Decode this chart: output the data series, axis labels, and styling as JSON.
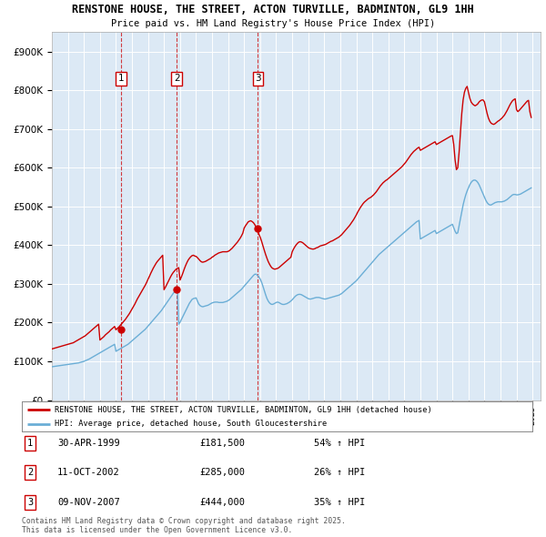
{
  "title_line1": "RENSTONE HOUSE, THE STREET, ACTON TURVILLE, BADMINTON, GL9 1HH",
  "title_line2": "Price paid vs. HM Land Registry's House Price Index (HPI)",
  "bg_color": "#dce9f5",
  "grid_color": "#ffffff",
  "hpi_color": "#6baed6",
  "price_color": "#cc0000",
  "yticks": [
    0,
    100000,
    200000,
    300000,
    400000,
    500000,
    600000,
    700000,
    800000,
    900000
  ],
  "ytick_labels": [
    "£0",
    "£100K",
    "£200K",
    "£300K",
    "£400K",
    "£500K",
    "£600K",
    "£700K",
    "£800K",
    "£900K"
  ],
  "xmin": 1995.0,
  "xmax": 2025.5,
  "ymin": 0,
  "ymax": 950000,
  "purchases": [
    {
      "num": 1,
      "date": "30-APR-1999",
      "price": 181500,
      "pct": "54%",
      "year": 1999.33
    },
    {
      "num": 2,
      "date": "11-OCT-2002",
      "price": 285000,
      "pct": "26%",
      "year": 2002.79
    },
    {
      "num": 3,
      "date": "09-NOV-2007",
      "price": 444000,
      "pct": "35%",
      "year": 2007.86
    }
  ],
  "legend_line1": "RENSTONE HOUSE, THE STREET, ACTON TURVILLE, BADMINTON, GL9 1HH (detached house)",
  "legend_line2": "HPI: Average price, detached house, South Gloucestershire",
  "footer": "Contains HM Land Registry data © Crown copyright and database right 2025.\nThis data is licensed under the Open Government Licence v3.0.",
  "hpi_data_x": [
    1995.0,
    1995.083,
    1995.167,
    1995.25,
    1995.333,
    1995.417,
    1995.5,
    1995.583,
    1995.667,
    1995.75,
    1995.833,
    1995.917,
    1996.0,
    1996.083,
    1996.167,
    1996.25,
    1996.333,
    1996.417,
    1996.5,
    1996.583,
    1996.667,
    1996.75,
    1996.833,
    1996.917,
    1997.0,
    1997.083,
    1997.167,
    1997.25,
    1997.333,
    1997.417,
    1997.5,
    1997.583,
    1997.667,
    1997.75,
    1997.833,
    1997.917,
    1998.0,
    1998.083,
    1998.167,
    1998.25,
    1998.333,
    1998.417,
    1998.5,
    1998.583,
    1998.667,
    1998.75,
    1998.833,
    1998.917,
    1999.0,
    1999.083,
    1999.167,
    1999.25,
    1999.333,
    1999.417,
    1999.5,
    1999.583,
    1999.667,
    1999.75,
    1999.833,
    1999.917,
    2000.0,
    2000.083,
    2000.167,
    2000.25,
    2000.333,
    2000.417,
    2000.5,
    2000.583,
    2000.667,
    2000.75,
    2000.833,
    2000.917,
    2001.0,
    2001.083,
    2001.167,
    2001.25,
    2001.333,
    2001.417,
    2001.5,
    2001.583,
    2001.667,
    2001.75,
    2001.833,
    2001.917,
    2002.0,
    2002.083,
    2002.167,
    2002.25,
    2002.333,
    2002.417,
    2002.5,
    2002.583,
    2002.667,
    2002.75,
    2002.833,
    2002.917,
    2003.0,
    2003.083,
    2003.167,
    2003.25,
    2003.333,
    2003.417,
    2003.5,
    2003.583,
    2003.667,
    2003.75,
    2003.833,
    2003.917,
    2004.0,
    2004.083,
    2004.167,
    2004.25,
    2004.333,
    2004.417,
    2004.5,
    2004.583,
    2004.667,
    2004.75,
    2004.833,
    2004.917,
    2005.0,
    2005.083,
    2005.167,
    2005.25,
    2005.333,
    2005.417,
    2005.5,
    2005.583,
    2005.667,
    2005.75,
    2005.833,
    2005.917,
    2006.0,
    2006.083,
    2006.167,
    2006.25,
    2006.333,
    2006.417,
    2006.5,
    2006.583,
    2006.667,
    2006.75,
    2006.833,
    2006.917,
    2007.0,
    2007.083,
    2007.167,
    2007.25,
    2007.333,
    2007.417,
    2007.5,
    2007.583,
    2007.667,
    2007.75,
    2007.833,
    2007.917,
    2008.0,
    2008.083,
    2008.167,
    2008.25,
    2008.333,
    2008.417,
    2008.5,
    2008.583,
    2008.667,
    2008.75,
    2008.833,
    2008.917,
    2009.0,
    2009.083,
    2009.167,
    2009.25,
    2009.333,
    2009.417,
    2009.5,
    2009.583,
    2009.667,
    2009.75,
    2009.833,
    2009.917,
    2010.0,
    2010.083,
    2010.167,
    2010.25,
    2010.333,
    2010.417,
    2010.5,
    2010.583,
    2010.667,
    2010.75,
    2010.833,
    2010.917,
    2011.0,
    2011.083,
    2011.167,
    2011.25,
    2011.333,
    2011.417,
    2011.5,
    2011.583,
    2011.667,
    2011.75,
    2011.833,
    2011.917,
    2012.0,
    2012.083,
    2012.167,
    2012.25,
    2012.333,
    2012.417,
    2012.5,
    2012.583,
    2012.667,
    2012.75,
    2012.833,
    2012.917,
    2013.0,
    2013.083,
    2013.167,
    2013.25,
    2013.333,
    2013.417,
    2013.5,
    2013.583,
    2013.667,
    2013.75,
    2013.833,
    2013.917,
    2014.0,
    2014.083,
    2014.167,
    2014.25,
    2014.333,
    2014.417,
    2014.5,
    2014.583,
    2014.667,
    2014.75,
    2014.833,
    2014.917,
    2015.0,
    2015.083,
    2015.167,
    2015.25,
    2015.333,
    2015.417,
    2015.5,
    2015.583,
    2015.667,
    2015.75,
    2015.833,
    2015.917,
    2016.0,
    2016.083,
    2016.167,
    2016.25,
    2016.333,
    2016.417,
    2016.5,
    2016.583,
    2016.667,
    2016.75,
    2016.833,
    2016.917,
    2017.0,
    2017.083,
    2017.167,
    2017.25,
    2017.333,
    2017.417,
    2017.5,
    2017.583,
    2017.667,
    2017.75,
    2017.833,
    2017.917,
    2018.0,
    2018.083,
    2018.167,
    2018.25,
    2018.333,
    2018.417,
    2018.5,
    2018.583,
    2018.667,
    2018.75,
    2018.833,
    2018.917,
    2019.0,
    2019.083,
    2019.167,
    2019.25,
    2019.333,
    2019.417,
    2019.5,
    2019.583,
    2019.667,
    2019.75,
    2019.833,
    2019.917,
    2020.0,
    2020.083,
    2020.167,
    2020.25,
    2020.333,
    2020.417,
    2020.5,
    2020.583,
    2020.667,
    2020.75,
    2020.833,
    2020.917,
    2021.0,
    2021.083,
    2021.167,
    2021.25,
    2021.333,
    2021.417,
    2021.5,
    2021.583,
    2021.667,
    2021.75,
    2021.833,
    2021.917,
    2022.0,
    2022.083,
    2022.167,
    2022.25,
    2022.333,
    2022.417,
    2022.5,
    2022.583,
    2022.667,
    2022.75,
    2022.833,
    2022.917,
    2023.0,
    2023.083,
    2023.167,
    2023.25,
    2023.333,
    2023.417,
    2023.5,
    2023.583,
    2023.667,
    2023.75,
    2023.833,
    2023.917,
    2024.0,
    2024.083,
    2024.167,
    2024.25,
    2024.333,
    2024.417,
    2024.5,
    2024.583,
    2024.667,
    2024.75,
    2024.833,
    2024.917
  ],
  "hpi_data_y": [
    86000,
    86500,
    87000,
    87500,
    88000,
    88500,
    89000,
    89500,
    90000,
    90500,
    91000,
    91500,
    92000,
    92500,
    93000,
    93500,
    94000,
    94500,
    95000,
    95500,
    96000,
    97000,
    98000,
    99000,
    100000,
    101500,
    103000,
    104500,
    106000,
    108000,
    110000,
    112000,
    114000,
    116000,
    118000,
    120000,
    122000,
    124000,
    126000,
    128000,
    130000,
    132000,
    134000,
    136000,
    138000,
    140000,
    142000,
    144000,
    126000,
    128000,
    130000,
    132000,
    134000,
    136000,
    138000,
    140000,
    142000,
    144000,
    147000,
    150000,
    153000,
    156000,
    159000,
    162000,
    165000,
    168000,
    171000,
    174000,
    177000,
    180000,
    183000,
    187000,
    191000,
    195000,
    199000,
    203000,
    207000,
    211000,
    215000,
    219000,
    223000,
    227000,
    231000,
    236000,
    241000,
    246000,
    251000,
    256000,
    261000,
    266000,
    271000,
    276000,
    281000,
    286000,
    291000,
    196000,
    201000,
    208000,
    215000,
    222000,
    229000,
    236000,
    243000,
    250000,
    255000,
    260000,
    262000,
    263000,
    264000,
    256000,
    248000,
    244000,
    242000,
    241000,
    242000,
    243000,
    244000,
    245000,
    247000,
    249000,
    251000,
    252000,
    253000,
    253000,
    253000,
    252000,
    252000,
    252000,
    252000,
    253000,
    254000,
    255000,
    257000,
    259000,
    262000,
    265000,
    268000,
    271000,
    274000,
    277000,
    280000,
    283000,
    286000,
    290000,
    294000,
    298000,
    302000,
    306000,
    310000,
    314000,
    318000,
    322000,
    325000,
    325000,
    322000,
    318000,
    313000,
    305000,
    295000,
    284000,
    273000,
    263000,
    256000,
    251000,
    248000,
    247000,
    248000,
    250000,
    252000,
    253000,
    252000,
    250000,
    248000,
    247000,
    247000,
    248000,
    249000,
    251000,
    253000,
    256000,
    259000,
    263000,
    267000,
    270000,
    272000,
    273000,
    273000,
    272000,
    270000,
    268000,
    266000,
    264000,
    262000,
    261000,
    261000,
    262000,
    263000,
    264000,
    265000,
    265000,
    265000,
    264000,
    263000,
    262000,
    261000,
    261000,
    262000,
    263000,
    264000,
    265000,
    266000,
    267000,
    268000,
    269000,
    270000,
    271000,
    273000,
    275000,
    278000,
    281000,
    284000,
    287000,
    290000,
    293000,
    296000,
    299000,
    302000,
    305000,
    308000,
    312000,
    316000,
    320000,
    324000,
    328000,
    332000,
    336000,
    340000,
    344000,
    348000,
    352000,
    356000,
    360000,
    364000,
    368000,
    372000,
    376000,
    379000,
    382000,
    385000,
    388000,
    391000,
    394000,
    397000,
    400000,
    403000,
    406000,
    409000,
    412000,
    415000,
    418000,
    421000,
    424000,
    427000,
    430000,
    433000,
    436000,
    439000,
    442000,
    445000,
    448000,
    451000,
    454000,
    457000,
    460000,
    462000,
    464000,
    416000,
    418000,
    420000,
    422000,
    424000,
    426000,
    428000,
    430000,
    432000,
    434000,
    436000,
    438000,
    430000,
    432000,
    434000,
    436000,
    438000,
    440000,
    442000,
    444000,
    446000,
    448000,
    450000,
    452000,
    454000,
    445000,
    436000,
    430000,
    432000,
    450000,
    468000,
    486000,
    504000,
    518000,
    530000,
    540000,
    548000,
    556000,
    562000,
    566000,
    568000,
    568000,
    566000,
    562000,
    556000,
    548000,
    540000,
    532000,
    524000,
    516000,
    510000,
    506000,
    504000,
    504000,
    506000,
    508000,
    510000,
    511000,
    512000,
    512000,
    512000,
    512000,
    513000,
    514000,
    516000,
    518000,
    521000,
    524000,
    527000,
    530000,
    531000,
    531000,
    530000,
    530000,
    531000,
    532000,
    534000,
    536000,
    538000,
    540000,
    542000,
    544000,
    546000,
    548000
  ],
  "price_data_x": [
    1995.0,
    1995.083,
    1995.167,
    1995.25,
    1995.333,
    1995.417,
    1995.5,
    1995.583,
    1995.667,
    1995.75,
    1995.833,
    1995.917,
    1996.0,
    1996.083,
    1996.167,
    1996.25,
    1996.333,
    1996.417,
    1996.5,
    1996.583,
    1996.667,
    1996.75,
    1996.833,
    1996.917,
    1997.0,
    1997.083,
    1997.167,
    1997.25,
    1997.333,
    1997.417,
    1997.5,
    1997.583,
    1997.667,
    1997.75,
    1997.833,
    1997.917,
    1998.0,
    1998.083,
    1998.167,
    1998.25,
    1998.333,
    1998.417,
    1998.5,
    1998.583,
    1998.667,
    1998.75,
    1998.833,
    1998.917,
    1999.0,
    1999.083,
    1999.167,
    1999.25,
    1999.333,
    1999.417,
    1999.5,
    1999.583,
    1999.667,
    1999.75,
    1999.833,
    1999.917,
    2000.0,
    2000.083,
    2000.167,
    2000.25,
    2000.333,
    2000.417,
    2000.5,
    2000.583,
    2000.667,
    2000.75,
    2000.833,
    2000.917,
    2001.0,
    2001.083,
    2001.167,
    2001.25,
    2001.333,
    2001.417,
    2001.5,
    2001.583,
    2001.667,
    2001.75,
    2001.833,
    2001.917,
    2002.0,
    2002.083,
    2002.167,
    2002.25,
    2002.333,
    2002.417,
    2002.5,
    2002.583,
    2002.667,
    2002.75,
    2002.833,
    2002.917,
    2003.0,
    2003.083,
    2003.167,
    2003.25,
    2003.333,
    2003.417,
    2003.5,
    2003.583,
    2003.667,
    2003.75,
    2003.833,
    2003.917,
    2004.0,
    2004.083,
    2004.167,
    2004.25,
    2004.333,
    2004.417,
    2004.5,
    2004.583,
    2004.667,
    2004.75,
    2004.833,
    2004.917,
    2005.0,
    2005.083,
    2005.167,
    2005.25,
    2005.333,
    2005.417,
    2005.5,
    2005.583,
    2005.667,
    2005.75,
    2005.833,
    2005.917,
    2006.0,
    2006.083,
    2006.167,
    2006.25,
    2006.333,
    2006.417,
    2006.5,
    2006.583,
    2006.667,
    2006.75,
    2006.833,
    2006.917,
    2007.0,
    2007.083,
    2007.167,
    2007.25,
    2007.333,
    2007.417,
    2007.5,
    2007.583,
    2007.667,
    2007.75,
    2007.833,
    2007.917,
    2008.0,
    2008.083,
    2008.167,
    2008.25,
    2008.333,
    2008.417,
    2008.5,
    2008.583,
    2008.667,
    2008.75,
    2008.833,
    2008.917,
    2009.0,
    2009.083,
    2009.167,
    2009.25,
    2009.333,
    2009.417,
    2009.5,
    2009.583,
    2009.667,
    2009.75,
    2009.833,
    2009.917,
    2010.0,
    2010.083,
    2010.167,
    2010.25,
    2010.333,
    2010.417,
    2010.5,
    2010.583,
    2010.667,
    2010.75,
    2010.833,
    2010.917,
    2011.0,
    2011.083,
    2011.167,
    2011.25,
    2011.333,
    2011.417,
    2011.5,
    2011.583,
    2011.667,
    2011.75,
    2011.833,
    2011.917,
    2012.0,
    2012.083,
    2012.167,
    2012.25,
    2012.333,
    2012.417,
    2012.5,
    2012.583,
    2012.667,
    2012.75,
    2012.833,
    2012.917,
    2013.0,
    2013.083,
    2013.167,
    2013.25,
    2013.333,
    2013.417,
    2013.5,
    2013.583,
    2013.667,
    2013.75,
    2013.833,
    2013.917,
    2014.0,
    2014.083,
    2014.167,
    2014.25,
    2014.333,
    2014.417,
    2014.5,
    2014.583,
    2014.667,
    2014.75,
    2014.833,
    2014.917,
    2015.0,
    2015.083,
    2015.167,
    2015.25,
    2015.333,
    2015.417,
    2015.5,
    2015.583,
    2015.667,
    2015.75,
    2015.833,
    2015.917,
    2016.0,
    2016.083,
    2016.167,
    2016.25,
    2016.333,
    2016.417,
    2016.5,
    2016.583,
    2016.667,
    2016.75,
    2016.833,
    2016.917,
    2017.0,
    2017.083,
    2017.167,
    2017.25,
    2017.333,
    2017.417,
    2017.5,
    2017.583,
    2017.667,
    2017.75,
    2017.833,
    2017.917,
    2018.0,
    2018.083,
    2018.167,
    2018.25,
    2018.333,
    2018.417,
    2018.5,
    2018.583,
    2018.667,
    2018.75,
    2018.833,
    2018.917,
    2019.0,
    2019.083,
    2019.167,
    2019.25,
    2019.333,
    2019.417,
    2019.5,
    2019.583,
    2019.667,
    2019.75,
    2019.833,
    2019.917,
    2020.0,
    2020.083,
    2020.167,
    2020.25,
    2020.333,
    2020.417,
    2020.5,
    2020.583,
    2020.667,
    2020.75,
    2020.833,
    2020.917,
    2021.0,
    2021.083,
    2021.167,
    2021.25,
    2021.333,
    2021.417,
    2021.5,
    2021.583,
    2021.667,
    2021.75,
    2021.833,
    2021.917,
    2022.0,
    2022.083,
    2022.167,
    2022.25,
    2022.333,
    2022.417,
    2022.5,
    2022.583,
    2022.667,
    2022.75,
    2022.833,
    2022.917,
    2023.0,
    2023.083,
    2023.167,
    2023.25,
    2023.333,
    2023.417,
    2023.5,
    2023.583,
    2023.667,
    2023.75,
    2023.833,
    2023.917,
    2024.0,
    2024.083,
    2024.167,
    2024.25,
    2024.333,
    2024.417,
    2024.5,
    2024.583,
    2024.667,
    2024.75,
    2024.833,
    2024.917
  ],
  "price_data_y": [
    132000,
    133000,
    134000,
    135000,
    136000,
    137000,
    138000,
    139000,
    140000,
    141000,
    142000,
    143000,
    144000,
    145000,
    146000,
    147000,
    148000,
    150000,
    152000,
    154000,
    156000,
    158000,
    160000,
    162000,
    164000,
    166000,
    169000,
    172000,
    175000,
    178000,
    181000,
    184000,
    187000,
    190000,
    193000,
    196000,
    155000,
    158000,
    161000,
    164000,
    168000,
    171000,
    174000,
    177000,
    181000,
    184000,
    187000,
    190000,
    181500,
    185000,
    188000,
    192000,
    196000,
    200000,
    204000,
    208000,
    213000,
    218000,
    223000,
    229000,
    235000,
    241000,
    247000,
    254000,
    261000,
    267000,
    273000,
    279000,
    285000,
    291000,
    297000,
    304000,
    312000,
    319000,
    327000,
    334000,
    341000,
    347000,
    353000,
    358000,
    362000,
    366000,
    370000,
    374000,
    285000,
    291000,
    298000,
    305000,
    312000,
    319000,
    325000,
    330000,
    334000,
    338000,
    340000,
    342000,
    310000,
    318000,
    327000,
    337000,
    346000,
    354000,
    361000,
    366000,
    370000,
    373000,
    374000,
    372000,
    371000,
    368000,
    364000,
    360000,
    357000,
    356000,
    357000,
    358000,
    360000,
    362000,
    364000,
    366000,
    369000,
    371000,
    374000,
    376000,
    378000,
    380000,
    381000,
    382000,
    383000,
    383000,
    383000,
    383000,
    384000,
    386000,
    389000,
    392000,
    396000,
    400000,
    404000,
    408000,
    413000,
    418000,
    424000,
    431000,
    444000,
    450000,
    455000,
    460000,
    462000,
    463000,
    461000,
    458000,
    453000,
    446000,
    438000,
    429000,
    421000,
    411000,
    399000,
    388000,
    377000,
    367000,
    358000,
    351000,
    345000,
    341000,
    339000,
    338000,
    339000,
    340000,
    342000,
    345000,
    348000,
    351000,
    354000,
    357000,
    360000,
    363000,
    366000,
    369000,
    383000,
    390000,
    396000,
    401000,
    405000,
    408000,
    409000,
    408000,
    406000,
    403000,
    400000,
    397000,
    394000,
    392000,
    391000,
    390000,
    390000,
    391000,
    393000,
    394000,
    396000,
    398000,
    399000,
    400000,
    401000,
    402000,
    404000,
    406000,
    408000,
    410000,
    411000,
    413000,
    415000,
    417000,
    419000,
    421000,
    424000,
    427000,
    431000,
    435000,
    439000,
    443000,
    447000,
    451000,
    456000,
    461000,
    466000,
    472000,
    478000,
    485000,
    491000,
    497000,
    502000,
    507000,
    511000,
    514000,
    517000,
    520000,
    522000,
    524000,
    527000,
    530000,
    534000,
    538000,
    543000,
    548000,
    553000,
    557000,
    561000,
    564000,
    567000,
    569000,
    572000,
    575000,
    578000,
    581000,
    584000,
    587000,
    590000,
    593000,
    596000,
    599000,
    602000,
    606000,
    610000,
    614000,
    619000,
    624000,
    629000,
    634000,
    638000,
    642000,
    645000,
    648000,
    651000,
    653000,
    645000,
    647000,
    649000,
    651000,
    653000,
    655000,
    657000,
    659000,
    661000,
    663000,
    665000,
    667000,
    660000,
    662000,
    664000,
    666000,
    668000,
    670000,
    672000,
    674000,
    676000,
    678000,
    680000,
    682000,
    683000,
    660000,
    620000,
    595000,
    600000,
    640000,
    690000,
    740000,
    775000,
    795000,
    805000,
    810000,
    795000,
    780000,
    770000,
    765000,
    762000,
    760000,
    762000,
    765000,
    770000,
    773000,
    775000,
    775000,
    770000,
    755000,
    740000,
    728000,
    720000,
    715000,
    713000,
    712000,
    714000,
    717000,
    720000,
    722000,
    725000,
    728000,
    732000,
    736000,
    742000,
    748000,
    755000,
    762000,
    768000,
    773000,
    776000,
    778000,
    750000,
    745000,
    748000,
    752000,
    756000,
    760000,
    764000,
    768000,
    772000,
    774000,
    745000,
    730000
  ]
}
